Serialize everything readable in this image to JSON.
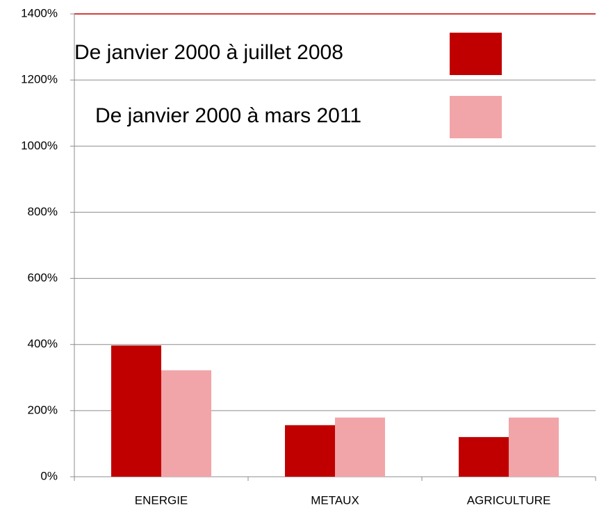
{
  "chart_data": {
    "type": "bar",
    "categories": [
      "ENERGIE",
      "METAUX",
      "AGRICULTURE"
    ],
    "series": [
      {
        "name": "De janvier 2000 à juillet 2008",
        "color": "#c00000",
        "values": [
          397,
          156,
          120
        ]
      },
      {
        "name": "De janvier 2000 à mars 2011",
        "color": "#f2a5a8",
        "values": [
          322,
          179,
          179
        ]
      }
    ],
    "ylim": [
      0,
      1400
    ],
    "yticks": [
      {
        "value": 0,
        "label": "0%"
      },
      {
        "value": 200,
        "label": "200%"
      },
      {
        "value": 400,
        "label": "400%"
      },
      {
        "value": 600,
        "label": "600%"
      },
      {
        "value": 800,
        "label": "800%"
      },
      {
        "value": 1000,
        "label": "1000%"
      },
      {
        "value": 1200,
        "label": "1200%"
      },
      {
        "value": 1400,
        "label": "1400%"
      }
    ],
    "grid": true
  }
}
